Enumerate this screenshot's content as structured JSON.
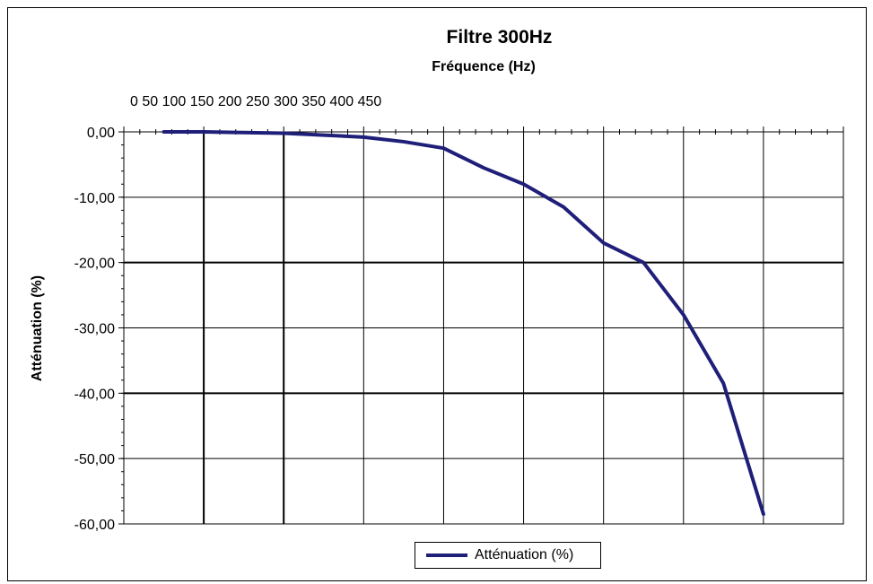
{
  "chart_data": {
    "type": "line",
    "title": "Filtre 300Hz",
    "xlabel": "Fréquence (Hz)",
    "ylabel": "Atténuation (%)",
    "x_tick_labels": "0 50 100 150 200 250 300 350 400 450",
    "ylim": [
      -60,
      0
    ],
    "y_ticks": [
      "0,00",
      "-10,00",
      "-20,00",
      "-30,00",
      "-40,00",
      "-50,00",
      "-60,00"
    ],
    "xlim": [
      0,
      450
    ],
    "grid": true,
    "legend_position": "bottom",
    "series": [
      {
        "name": "Atténuation (%)",
        "color": "#1f1f7a",
        "x": [
          25,
          50,
          75,
          100,
          125,
          150,
          175,
          200,
          225,
          250,
          275,
          300,
          325,
          350,
          375,
          400
        ],
        "y": [
          0,
          0,
          -0.1,
          -0.2,
          -0.5,
          -0.8,
          -1.5,
          -2.5,
          -5.5,
          -8.0,
          -11.5,
          -17.0,
          -20.0,
          -28.0,
          -38.5,
          -58.5
        ]
      }
    ]
  }
}
